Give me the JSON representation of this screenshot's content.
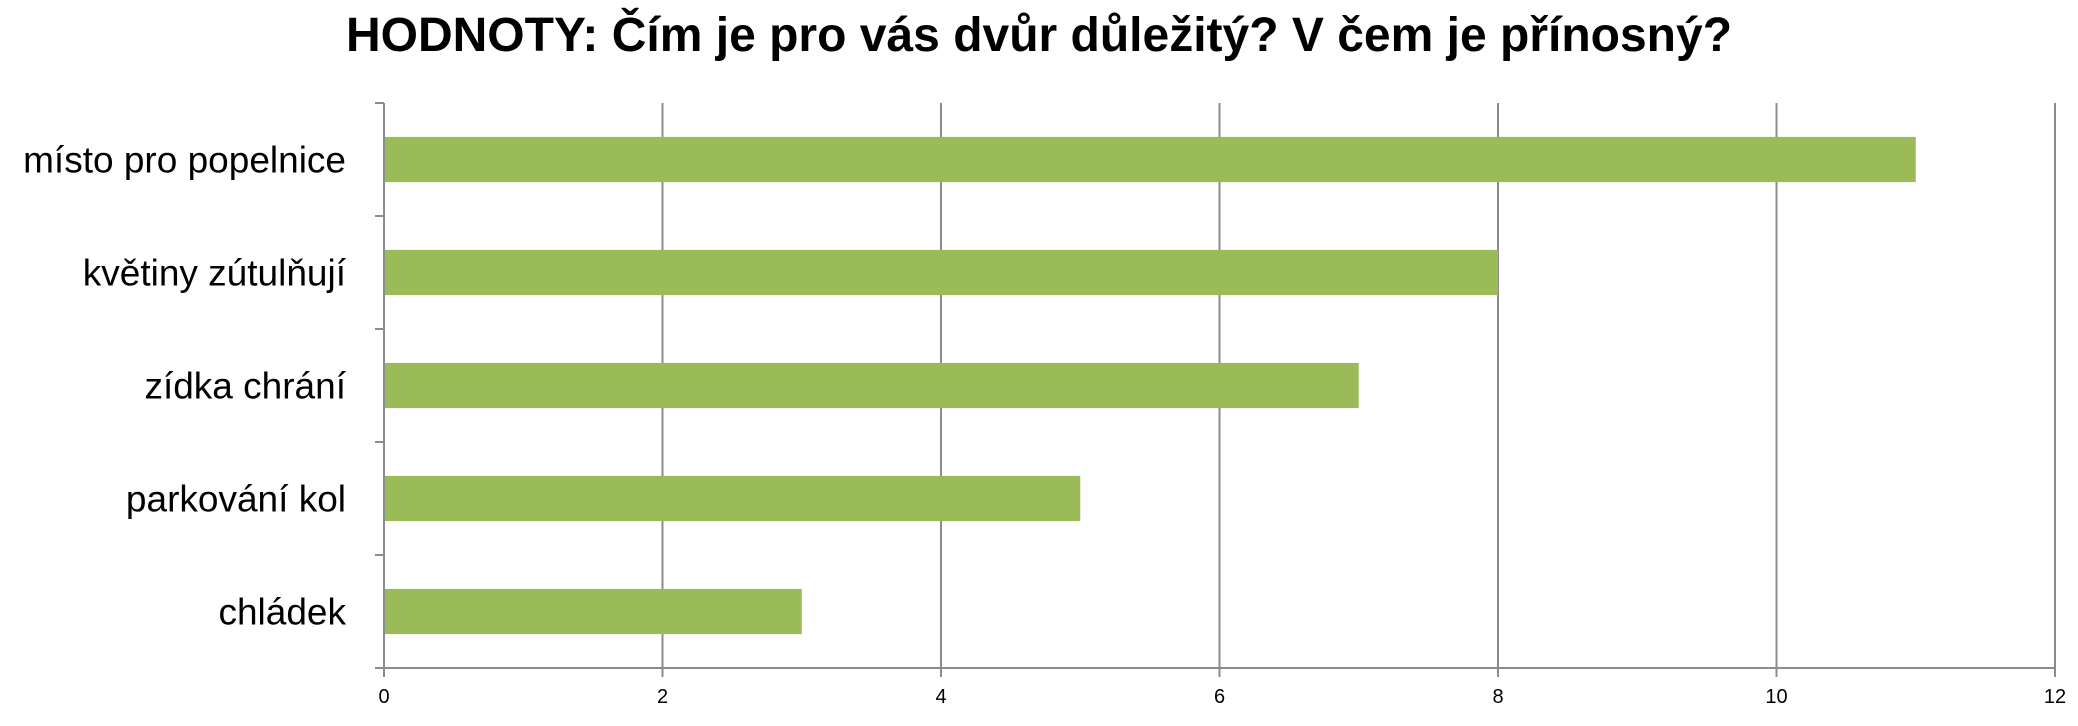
{
  "chart_data": {
    "type": "bar",
    "orientation": "horizontal",
    "title": "HODNOTY: Čím je pro vás dvůr důležitý? V čem je přínosný?",
    "categories": [
      "místo pro popelnice",
      "květiny zútulňují",
      "zídka chrání",
      "parkování kol",
      "chládek"
    ],
    "values": [
      11,
      8,
      7,
      5,
      3
    ],
    "xlim": [
      0,
      12
    ],
    "xticks": [
      0,
      2,
      4,
      6,
      8,
      10,
      12
    ],
    "xticks_labels": [
      "0",
      "2",
      "4",
      "6",
      "8",
      "10",
      "12"
    ],
    "grid": "vertical",
    "legend": "none",
    "colors": {
      "bar": "#9bbb59",
      "grid": "#8c8c8c",
      "axis": "#8c8c8c"
    }
  }
}
